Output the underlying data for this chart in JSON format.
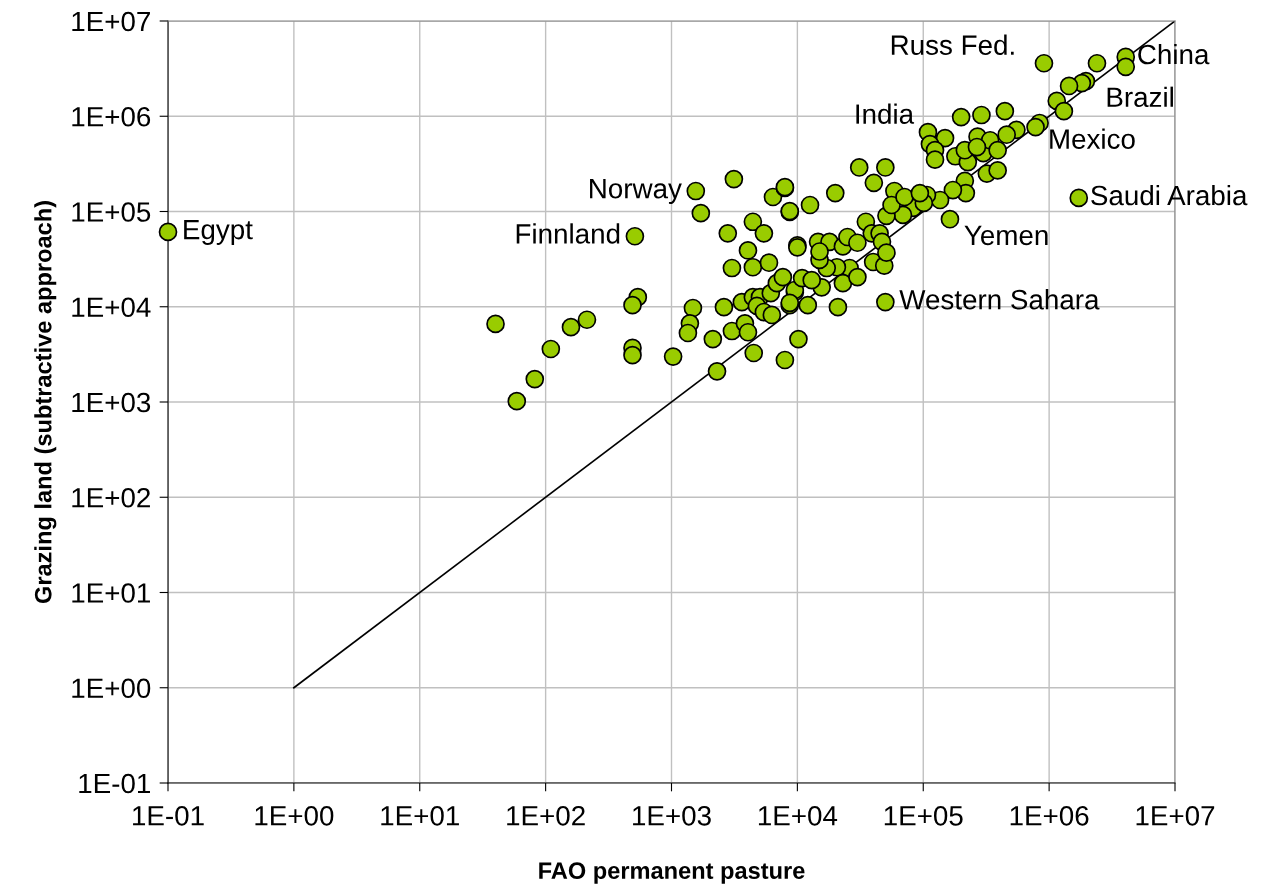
{
  "chart_data": {
    "type": "scatter",
    "xlabel": "FAO permanent pasture",
    "ylabel": "Grazing land (subtractive approach)",
    "log": "xy",
    "grid": true,
    "legend": false,
    "marker": "circle",
    "xlim": [
      0.1,
      10000000
    ],
    "ylim": [
      0.1,
      10000000
    ],
    "xticks": [
      {
        "value": 0.1,
        "label": "1E-01"
      },
      {
        "value": 1,
        "label": "1E+00"
      },
      {
        "value": 10,
        "label": "1E+01"
      },
      {
        "value": 100,
        "label": "1E+02"
      },
      {
        "value": 1000,
        "label": "1E+03"
      },
      {
        "value": 10000,
        "label": "1E+04"
      },
      {
        "value": 100000,
        "label": "1E+05"
      },
      {
        "value": 1000000,
        "label": "1E+06"
      },
      {
        "value": 10000000,
        "label": "1E+07"
      }
    ],
    "yticks": [
      {
        "value": 0.1,
        "label": "1E-01"
      },
      {
        "value": 1,
        "label": "1E+00"
      },
      {
        "value": 10,
        "label": "1E+01"
      },
      {
        "value": 100,
        "label": "1E+02"
      },
      {
        "value": 1000,
        "label": "1E+03"
      },
      {
        "value": 10000,
        "label": "1E+04"
      },
      {
        "value": 100000,
        "label": "1E+05"
      },
      {
        "value": 1000000,
        "label": "1E+06"
      },
      {
        "value": 10000000,
        "label": "1E+07"
      }
    ],
    "series": [
      {
        "type": "line",
        "color": "#000000",
        "marker": "none",
        "x": [
          1,
          10000000
        ],
        "values": [
          1,
          10000000
        ]
      },
      {
        "type": "scatter",
        "color": "#99cc00",
        "x": [
          0.1,
          1560,
          3130,
          1710,
          512,
          6400,
          7960,
          8700,
          2800,
          4430,
          5420,
          4050,
          3020,
          4430,
          5950,
          540,
          490,
          40,
          159,
          213,
          110,
          82,
          59,
          490,
          490,
          1030,
          1480,
          1400,
          1350,
          2130,
          2610,
          3020,
          3620,
          3830,
          4050,
          2300,
          4500,
          7960,
          4430,
          5040,
          4770,
          5420,
          6270,
          6150,
          6870,
          8700,
          10000,
          10200,
          7670,
          9550,
          910000,
          4060000,
          4060000,
          2400000,
          1960000,
          1820000,
          1440000,
          1150000,
          1310000,
          840000,
          780000,
          550000,
          445000,
          290000,
          200000,
          109000,
          149000,
          113000,
          124000,
          124000,
          180000,
          226000,
          214000,
          270000,
          300000,
          340000,
          390000,
          460000,
          320000,
          390000,
          267000,
          214000,
          218000,
          172000,
          1720000,
          163000,
          50000,
          136000,
          107000,
          83000,
          101000,
          69000,
          59000,
          51000,
          56000,
          35000,
          31000,
          40500,
          50000,
          20000,
          12600,
          7960,
          8700,
          10000,
          14600,
          18000,
          23000,
          25000,
          30000,
          39000,
          45000,
          47000,
          40000,
          49000,
          51000,
          26000,
          20600,
          17100,
          15000,
          15000,
          23000,
          21000,
          12100,
          15600,
          9550,
          8700,
          10900,
          13000,
          30000,
          71000,
          94000
        ],
        "values": [
          61000,
          164000,
          219000,
          96000,
          55000,
          142000,
          177000,
          99000,
          59000,
          78000,
          59000,
          39000,
          25500,
          26000,
          29000,
          12600,
          10400,
          6600,
          6100,
          7300,
          3600,
          1740,
          1020,
          3700,
          3100,
          3000,
          9700,
          6700,
          5300,
          4580,
          9900,
          5560,
          11200,
          6700,
          5400,
          2100,
          3270,
          2760,
          12600,
          12600,
          10200,
          8800,
          8200,
          13900,
          17700,
          10400,
          44000,
          4580,
          20500,
          14300,
          3600000,
          4200000,
          3300000,
          3600000,
          2340000,
          2230000,
          2080000,
          1450000,
          1130000,
          850000,
          770000,
          720000,
          1130000,
          1030000,
          980000,
          680000,
          590000,
          510000,
          440000,
          350000,
          380000,
          330000,
          440000,
          610000,
          410000,
          560000,
          440000,
          640000,
          250000,
          270000,
          475000,
          210000,
          156000,
          168000,
          139000,
          83000,
          11200,
          132000,
          149000,
          109000,
          123000,
          92000,
          164000,
          90000,
          117000,
          78000,
          290000,
          200000,
          290000,
          156000,
          117000,
          180000,
          101000,
          42000,
          48000,
          48000,
          43000,
          54000,
          47000,
          59000,
          59000,
          48000,
          29500,
          27000,
          37000,
          25500,
          26000,
          25500,
          31000,
          38000,
          17700,
          9900,
          10400,
          16000,
          15000,
          11000,
          20000,
          19000,
          20500,
          142000,
          156000
        ]
      }
    ],
    "annotations": [
      {
        "text": "Egypt",
        "x": 0.1,
        "y": 61000
      },
      {
        "text": "Norway",
        "x": 1560,
        "y": 164000
      },
      {
        "text": "Finnland",
        "x": 512,
        "y": 55000
      },
      {
        "text": "India",
        "x": 109000,
        "y": 680000
      },
      {
        "text": "Russ Fed.",
        "x": 910000,
        "y": 3600000
      },
      {
        "text": "China",
        "x": 4060000,
        "y": 4200000
      },
      {
        "text": "Brazil",
        "x": 1960000,
        "y": 2340000
      },
      {
        "text": "Mexico",
        "x": 840000,
        "y": 850000
      },
      {
        "text": "Saudi Arabia",
        "x": 1720000,
        "y": 139000
      },
      {
        "text": "Yemen",
        "x": 163000,
        "y": 83000
      },
      {
        "text": "Western Sahara",
        "x": 50000,
        "y": 11200
      }
    ]
  }
}
